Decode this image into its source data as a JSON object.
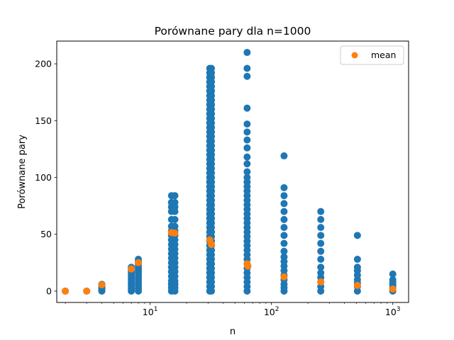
{
  "chart_data": {
    "type": "scatter",
    "title": "Porównane pary dla n=1000",
    "xlabel": "n",
    "ylabel": "Porównane pary",
    "xscale": "log",
    "xlim": [
      1.7,
      1350
    ],
    "ylim": [
      -10,
      220
    ],
    "yticks": [
      0,
      50,
      100,
      150,
      200
    ],
    "xticks": [
      {
        "base": "10",
        "exp": "1",
        "value": 10
      },
      {
        "base": "10",
        "exp": "2",
        "value": 100
      },
      {
        "base": "10",
        "exp": "3",
        "value": 1000
      }
    ],
    "grid": false,
    "legend": {
      "position": "top-right",
      "entries": [
        "mean"
      ]
    },
    "colors": {
      "points": "#1f77b4",
      "mean": "#ff7f0e"
    },
    "series": [
      {
        "name": "points",
        "columns": [
          {
            "x": 2,
            "y": [
              0
            ]
          },
          {
            "x": 3,
            "y": [
              0
            ]
          },
          {
            "x": 4,
            "y": [
              0,
              1,
              2,
              3,
              4,
              5,
              6
            ]
          },
          {
            "x": 7,
            "y": [
              0,
              2,
              4,
              6,
              8,
              10,
              12,
              14,
              16,
              18,
              20,
              21
            ]
          },
          {
            "x": 8,
            "y": [
              0,
              2,
              4,
              6,
              8,
              10,
              12,
              14,
              16,
              18,
              20,
              22,
              24,
              26,
              28
            ]
          },
          {
            "x": 15,
            "y": [
              0,
              3,
              6,
              9,
              13,
              17,
              21,
              25,
              29,
              33,
              37,
              41,
              45,
              49,
              53,
              57,
              63,
              70,
              74,
              78,
              84
            ]
          },
          {
            "x": 16,
            "y": [
              0,
              3,
              6,
              9,
              13,
              17,
              21,
              25,
              29,
              33,
              37,
              41,
              45,
              49,
              53,
              57,
              63,
              70,
              74,
              78,
              84
            ]
          },
          {
            "x": 31,
            "y": [
              0,
              4,
              8,
              12,
              16,
              20,
              24,
              28,
              32,
              36,
              40,
              44,
              48,
              52,
              56,
              60,
              64,
              68,
              72,
              76,
              80,
              84,
              88,
              92,
              96,
              100,
              104,
              108,
              112,
              116,
              120,
              124,
              128,
              132,
              136,
              140,
              144,
              148,
              152,
              156,
              160,
              164,
              168,
              172,
              176,
              180,
              184,
              188,
              192,
              196
            ]
          },
          {
            "x": 32,
            "y": [
              0,
              4,
              8,
              12,
              16,
              20,
              24,
              28,
              32,
              36,
              40,
              44,
              48,
              52,
              56,
              60,
              64,
              68,
              72,
              76,
              80,
              84,
              88,
              92,
              96,
              100,
              104,
              108,
              112,
              116,
              120,
              124,
              128,
              132,
              136,
              140,
              144,
              148,
              152,
              156,
              160,
              164,
              168,
              172,
              176,
              180,
              184,
              188,
              192,
              196
            ]
          },
          {
            "x": 63,
            "y": [
              0,
              4,
              8,
              12,
              16,
              20,
              24,
              28,
              32,
              36,
              40,
              44,
              48,
              52,
              56,
              60,
              64,
              68,
              72,
              76,
              80,
              84,
              88,
              92,
              96,
              100,
              105,
              112,
              118,
              126,
              133,
              140,
              147,
              161,
              189,
              196,
              210
            ]
          },
          {
            "x": 127,
            "y": [
              0,
              3,
              6,
              10,
              14,
              18,
              22,
              26,
              30,
              35,
              42,
              49,
              56,
              63,
              70,
              77,
              84,
              91,
              119
            ]
          },
          {
            "x": 255,
            "y": [
              0,
              4,
              8,
              12,
              16,
              21,
              28,
              35,
              42,
              49,
              56,
              63,
              70
            ]
          },
          {
            "x": 511,
            "y": [
              0,
              4,
              7,
              10,
              14,
              18,
              21,
              28,
              49
            ]
          },
          {
            "x": 1000,
            "y": [
              0,
              2,
              4,
              6,
              8,
              10,
              15
            ]
          }
        ]
      },
      {
        "name": "mean",
        "points": [
          {
            "x": 2,
            "y": 0
          },
          {
            "x": 3,
            "y": 0
          },
          {
            "x": 4,
            "y": 5.5
          },
          {
            "x": 7,
            "y": 19.5
          },
          {
            "x": 8,
            "y": 25
          },
          {
            "x": 15,
            "y": 51.5
          },
          {
            "x": 16,
            "y": 51
          },
          {
            "x": 31,
            "y": 45
          },
          {
            "x": 32,
            "y": 41
          },
          {
            "x": 63,
            "y": 24
          },
          {
            "x": 64,
            "y": 22
          },
          {
            "x": 127,
            "y": 12.5
          },
          {
            "x": 255,
            "y": 8
          },
          {
            "x": 511,
            "y": 5
          },
          {
            "x": 1000,
            "y": 1.8
          }
        ]
      }
    ]
  }
}
